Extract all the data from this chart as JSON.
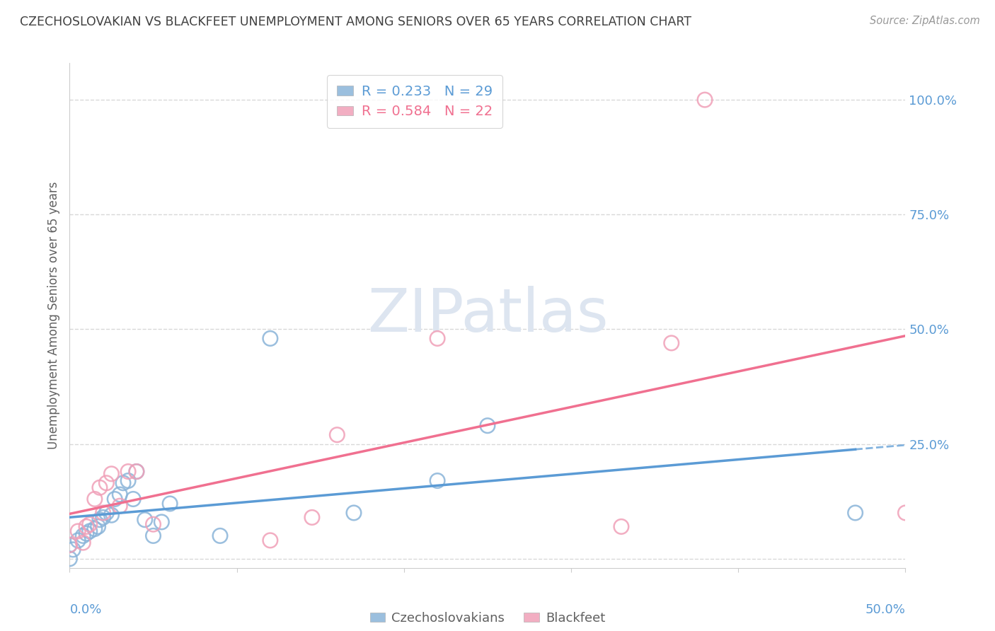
{
  "title": "CZECHOSLOVAKIAN VS BLACKFEET UNEMPLOYMENT AMONG SENIORS OVER 65 YEARS CORRELATION CHART",
  "source": "Source: ZipAtlas.com",
  "ylabel": "Unemployment Among Seniors over 65 years",
  "xlim": [
    0.0,
    0.5
  ],
  "ylim": [
    -0.02,
    1.08
  ],
  "ytick_vals": [
    0.0,
    0.25,
    0.5,
    0.75,
    1.0
  ],
  "ytick_labels": [
    "",
    "25.0%",
    "50.0%",
    "75.0%",
    "100.0%"
  ],
  "r_czech": 0.233,
  "n_czech": 29,
  "r_blackfeet": 0.584,
  "n_blackfeet": 22,
  "czech_color": "#8AB4D9",
  "blackfeet_color": "#F0A0B8",
  "czech_line_color": "#5B9BD5",
  "blackfeet_line_color": "#F07090",
  "czech_x": [
    0.0,
    0.0,
    0.002,
    0.005,
    0.008,
    0.01,
    0.012,
    0.015,
    0.017,
    0.018,
    0.02,
    0.022,
    0.025,
    0.027,
    0.03,
    0.032,
    0.035,
    0.038,
    0.04,
    0.045,
    0.05,
    0.055,
    0.06,
    0.09,
    0.12,
    0.17,
    0.22,
    0.25,
    0.47
  ],
  "czech_y": [
    0.0,
    0.03,
    0.02,
    0.04,
    0.05,
    0.055,
    0.06,
    0.065,
    0.07,
    0.085,
    0.09,
    0.1,
    0.095,
    0.13,
    0.14,
    0.165,
    0.17,
    0.13,
    0.19,
    0.085,
    0.05,
    0.08,
    0.12,
    0.05,
    0.48,
    0.1,
    0.17,
    0.29,
    0.1
  ],
  "blackfeet_x": [
    0.0,
    0.005,
    0.008,
    0.01,
    0.012,
    0.015,
    0.018,
    0.02,
    0.022,
    0.025,
    0.03,
    0.035,
    0.04,
    0.05,
    0.12,
    0.145,
    0.16,
    0.22,
    0.33,
    0.36,
    0.38,
    0.5
  ],
  "blackfeet_y": [
    0.03,
    0.06,
    0.035,
    0.07,
    0.075,
    0.13,
    0.155,
    0.1,
    0.165,
    0.185,
    0.115,
    0.19,
    0.19,
    0.075,
    0.04,
    0.09,
    0.27,
    0.48,
    0.07,
    0.47,
    1.0,
    0.1
  ],
  "background_color": "#FFFFFF",
  "title_color": "#404040",
  "axis_label_color": "#5B9BD5",
  "grid_color": "#D8D8D8",
  "watermark_text": "ZIPatlas",
  "watermark_color": "#DDE5F0"
}
